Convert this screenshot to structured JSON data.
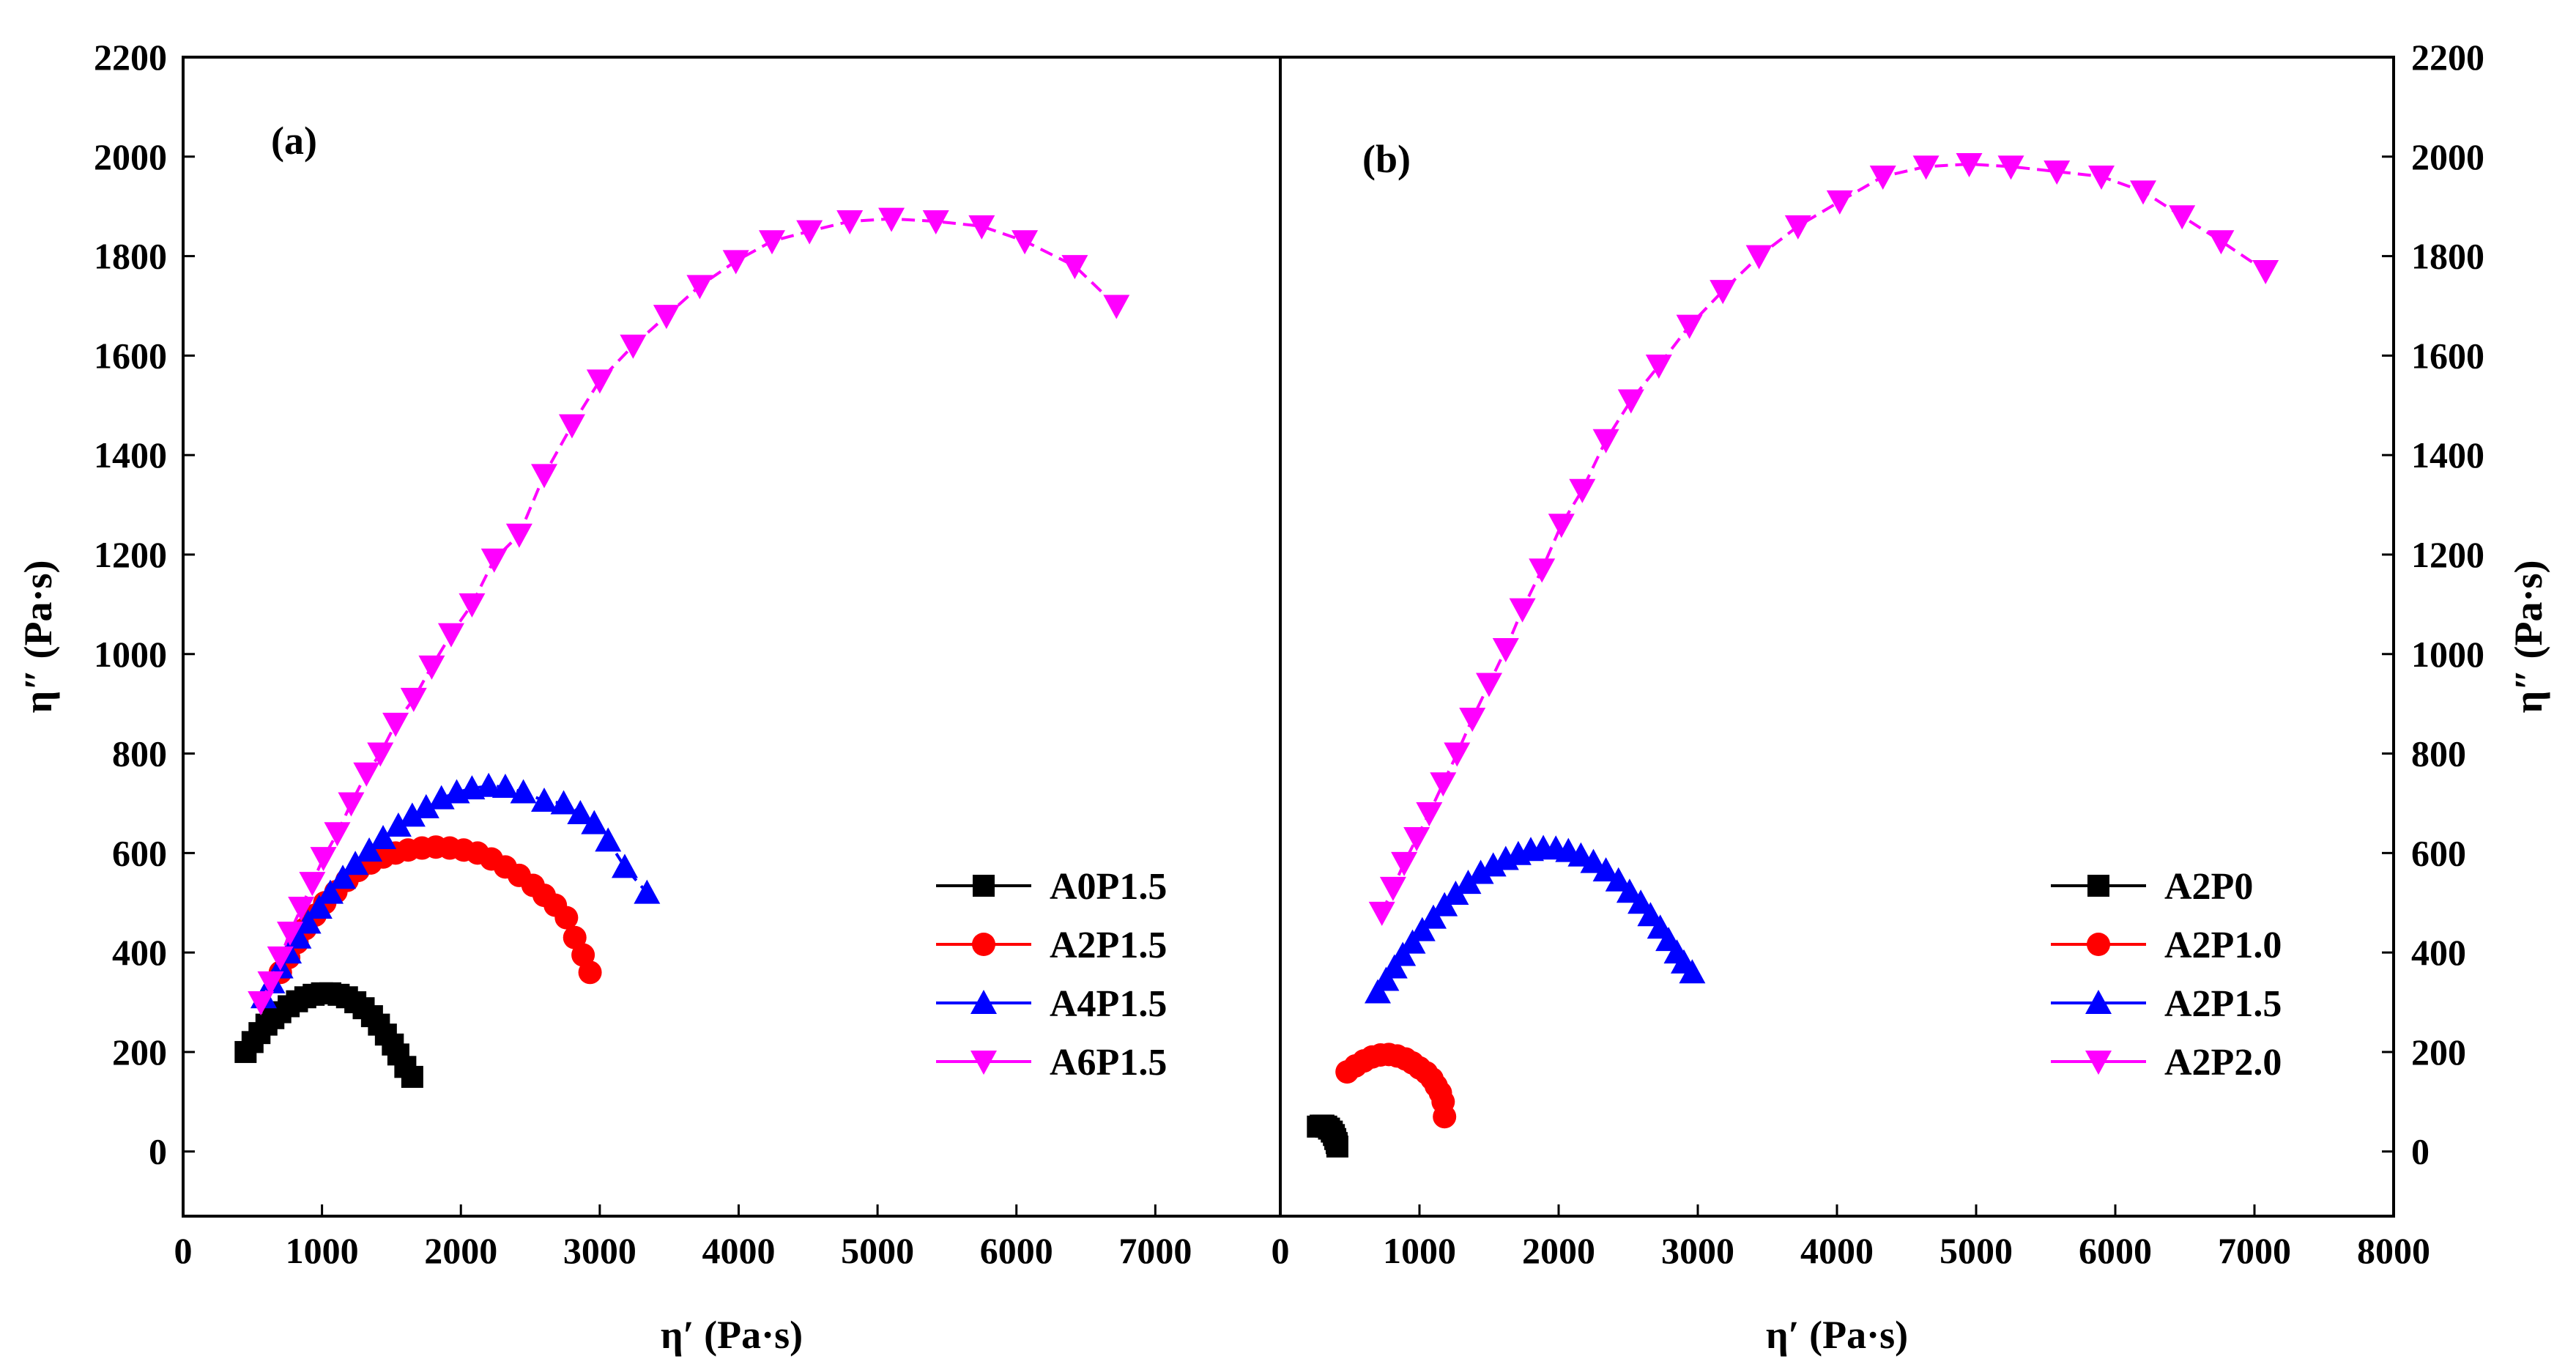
{
  "chart_data": [
    {
      "type": "scatter",
      "panel_label": "(a)",
      "xlabel": "η′ (Pa·s)",
      "ylabel": "η″ (Pa·s)",
      "xlim": [
        0,
        7900
      ],
      "ylim": [
        -130,
        2200
      ],
      "x_ticks": [
        "0",
        "1000",
        "2000",
        "3000",
        "4000",
        "5000",
        "6000",
        "7000"
      ],
      "y_ticks": [
        "0",
        "200",
        "400",
        "600",
        "800",
        "1000",
        "1200",
        "1400",
        "1600",
        "1800",
        "2000",
        "2200"
      ],
      "legend_position": "bottom-right",
      "series": [
        {
          "name": "A0P1.5",
          "color": "#000000",
          "marker": "square",
          "x": [
            450,
            500,
            550,
            600,
            650,
            700,
            760,
            820,
            880,
            940,
            1000,
            1060,
            1120,
            1180,
            1240,
            1300,
            1360,
            1410,
            1460,
            1510,
            1550,
            1600,
            1650
          ],
          "y": [
            200,
            220,
            238,
            255,
            268,
            280,
            292,
            302,
            310,
            315,
            318,
            318,
            315,
            310,
            300,
            288,
            272,
            255,
            235,
            215,
            195,
            170,
            150
          ]
        },
        {
          "name": "A2P1.5",
          "color": "#ff0000",
          "marker": "circle",
          "x": [
            700,
            760,
            820,
            880,
            950,
            1020,
            1100,
            1180,
            1260,
            1350,
            1440,
            1530,
            1620,
            1720,
            1820,
            1920,
            2020,
            2120,
            2220,
            2320,
            2420,
            2520,
            2600,
            2680,
            2760,
            2820,
            2880,
            2930
          ],
          "y": [
            360,
            390,
            420,
            448,
            475,
            500,
            522,
            545,
            565,
            580,
            592,
            600,
            606,
            610,
            612,
            610,
            606,
            600,
            588,
            572,
            555,
            535,
            515,
            495,
            470,
            430,
            395,
            360
          ]
        },
        {
          "name": "A4P1.5",
          "color": "#0000ff",
          "marker": "triangle-up",
          "x": [
            580,
            640,
            700,
            760,
            830,
            900,
            980,
            1060,
            1150,
            1240,
            1340,
            1440,
            1550,
            1650,
            1750,
            1860,
            1970,
            2080,
            2200,
            2320,
            2450,
            2600,
            2740,
            2860,
            2960,
            3060,
            3180,
            3340
          ],
          "y": [
            310,
            340,
            370,
            400,
            430,
            460,
            490,
            520,
            550,
            578,
            605,
            630,
            655,
            675,
            692,
            710,
            722,
            730,
            735,
            733,
            722,
            705,
            700,
            680,
            660,
            625,
            572,
            520
          ]
        },
        {
          "name": "A6P1.5",
          "color": "#ff00ff",
          "marker": "triangle-down",
          "x": [
            560,
            630,
            700,
            770,
            850,
            930,
            1010,
            1110,
            1210,
            1320,
            1420,
            1530,
            1660,
            1790,
            1930,
            2080,
            2240,
            2420,
            2600,
            2800,
            3000,
            3240,
            3480,
            3720,
            3980,
            4240,
            4510,
            4800,
            5100,
            5420,
            5750,
            6060,
            6420,
            6720
          ],
          "y": [
            300,
            340,
            390,
            440,
            490,
            540,
            590,
            640,
            700,
            760,
            800,
            860,
            910,
            975,
            1040,
            1100,
            1190,
            1240,
            1360,
            1460,
            1550,
            1620,
            1680,
            1740,
            1790,
            1830,
            1850,
            1870,
            1875,
            1870,
            1860,
            1830,
            1780,
            1700
          ]
        }
      ]
    },
    {
      "type": "scatter",
      "panel_label": "(b)",
      "xlabel": "η′ (Pa·s)",
      "ylabel": "η″ (Pa·s)",
      "xlim": [
        0,
        8000
      ],
      "ylim": [
        -130,
        2200
      ],
      "x_ticks": [
        "0",
        "1000",
        "2000",
        "3000",
        "4000",
        "5000",
        "6000",
        "7000",
        "8000"
      ],
      "y_ticks": [
        "0",
        "200",
        "400",
        "600",
        "800",
        "1000",
        "1200",
        "1400",
        "1600",
        "1800",
        "2000",
        "2200"
      ],
      "legend_position": "bottom-right",
      "series": [
        {
          "name": "A2P0",
          "color": "#000000",
          "marker": "square",
          "x": [
            270,
            290,
            310,
            330,
            350,
            370,
            385,
            395,
            405,
            410
          ],
          "y": [
            50,
            52,
            52,
            50,
            46,
            40,
            33,
            25,
            17,
            10
          ]
        },
        {
          "name": "A2P1.0",
          "color": "#ff0000",
          "marker": "circle",
          "x": [
            480,
            540,
            600,
            660,
            720,
            780,
            840,
            900,
            950,
            1000,
            1050,
            1090,
            1120,
            1150,
            1170,
            1180
          ],
          "y": [
            160,
            172,
            182,
            190,
            194,
            195,
            192,
            186,
            178,
            168,
            158,
            146,
            132,
            118,
            100,
            70
          ]
        },
        {
          "name": "A2P1.5",
          "color": "#0000ff",
          "marker": "triangle-up",
          "x": [
            700,
            760,
            820,
            880,
            950,
            1020,
            1100,
            1180,
            1260,
            1350,
            1440,
            1530,
            1620,
            1710,
            1800,
            1890,
            1980,
            2070,
            2160,
            2250,
            2340,
            2430,
            2510,
            2590,
            2660,
            2730,
            2790,
            2850,
            2900,
            2960
          ],
          "y": [
            320,
            345,
            370,
            395,
            420,
            445,
            470,
            495,
            518,
            540,
            560,
            575,
            588,
            598,
            606,
            610,
            609,
            604,
            595,
            582,
            565,
            545,
            522,
            500,
            475,
            450,
            425,
            400,
            380,
            360
          ]
        },
        {
          "name": "A2P2.0",
          "color": "#ff00ff",
          "marker": "triangle-down",
          "x": [
            730,
            810,
            890,
            980,
            1070,
            1170,
            1270,
            1380,
            1500,
            1620,
            1740,
            1880,
            2020,
            2170,
            2340,
            2520,
            2720,
            2940,
            3180,
            3440,
            3720,
            4020,
            4330,
            4640,
            4950,
            5250,
            5580,
            5900,
            6200,
            6480,
            6760,
            7080
          ],
          "y": [
            480,
            530,
            580,
            630,
            680,
            740,
            800,
            870,
            940,
            1010,
            1090,
            1170,
            1260,
            1330,
            1430,
            1510,
            1580,
            1660,
            1730,
            1800,
            1860,
            1910,
            1960,
            1980,
            1985,
            1980,
            1970,
            1960,
            1930,
            1880,
            1830,
            1770
          ]
        }
      ]
    }
  ]
}
